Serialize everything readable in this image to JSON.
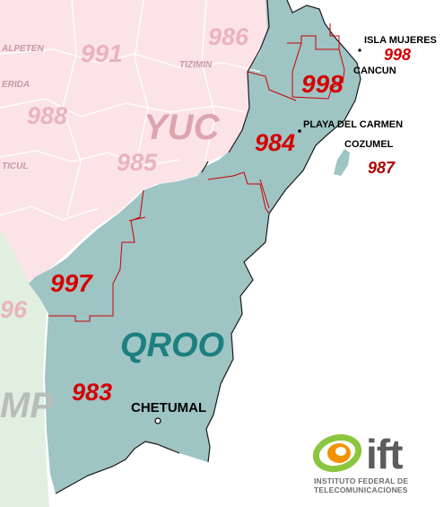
{
  "map": {
    "states": {
      "qroo": "QROO",
      "yuc": "YUC",
      "camp_fragment": "MP"
    },
    "area_codes": {
      "c998_isla": "998",
      "c998_cancun": "998",
      "c984": "984",
      "c987": "987",
      "c997": "997",
      "c983": "983",
      "c991": "991",
      "c986": "986",
      "c988": "988",
      "c985": "985",
      "c996_fragment": "96"
    },
    "cities": {
      "isla_mujeres": "ISLA MUJERES",
      "cancun": "CANCUN",
      "playa": "PLAYA DEL CARMEN",
      "cozumel": "COZUMEL",
      "chetumal": "CHETUMAL"
    },
    "towns_faint": {
      "alpeten": "ALPETEN",
      "tizimin": "TIZIMIN",
      "erida": "ERIDA",
      "ticul": "TICUL"
    },
    "colors": {
      "quintana_roo": "#9fc4c4",
      "yucatan": "#fbe3e7",
      "campeche": "#e1efe1",
      "border_red": "#cc0000",
      "label_red": "#d40000",
      "ift_orange": "#f39200",
      "ift_green": "#8cc63f"
    }
  },
  "logo": {
    "brand": "ift",
    "line1": "INSTITUTO FEDERAL DE",
    "line2": "TELECOMUNICACIONES"
  }
}
